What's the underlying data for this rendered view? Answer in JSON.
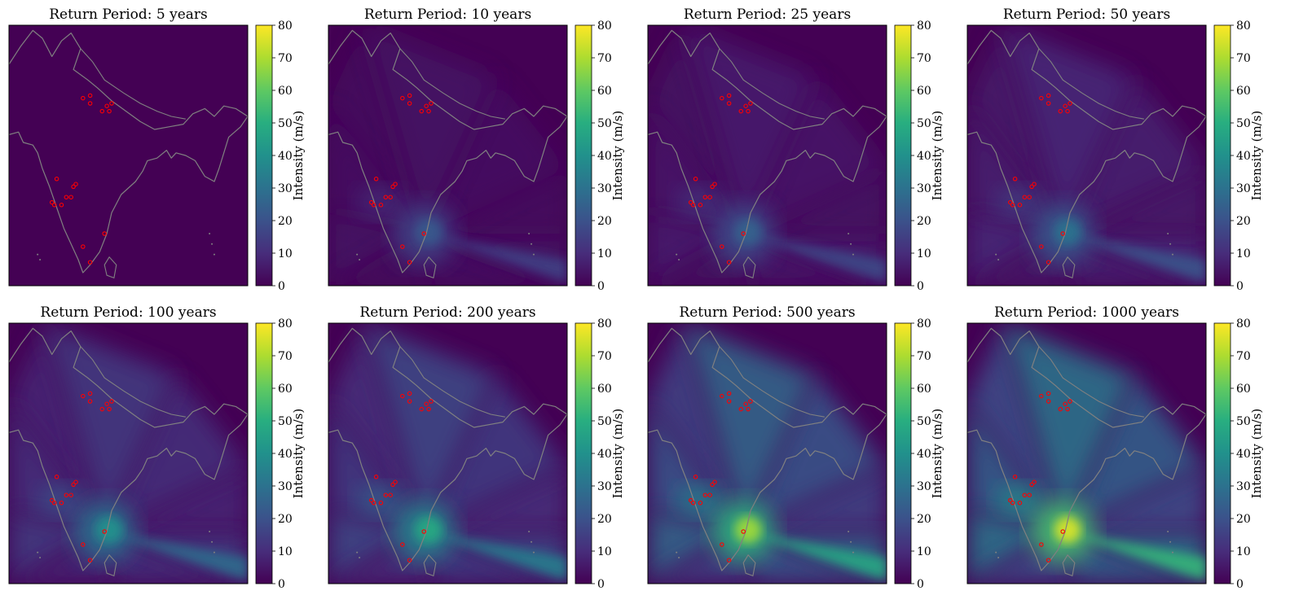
{
  "figure": {
    "colorbar_label": "Intensity (m/s)",
    "colormap": "viridis",
    "colorbar_range": [
      0,
      80
    ],
    "colorbar_ticks": [
      0,
      10,
      20,
      30,
      40,
      50,
      60,
      70,
      80
    ],
    "coastline_color": "#808080",
    "marker_color": "#ff0000"
  },
  "chart_data": [
    {
      "type": "heatmap",
      "title": "Return Period: 5 years",
      "return_period": 5,
      "peak_intensity": 2,
      "spread": 0.0
    },
    {
      "type": "heatmap",
      "title": "Return Period: 10 years",
      "return_period": 10,
      "peak_intensity": 22,
      "spread": 0.45
    },
    {
      "type": "heatmap",
      "title": "Return Period: 25 years",
      "return_period": 25,
      "peak_intensity": 25,
      "spread": 0.6
    },
    {
      "type": "heatmap",
      "title": "Return Period: 50 years",
      "return_period": 50,
      "peak_intensity": 30,
      "spread": 0.7
    },
    {
      "type": "heatmap",
      "title": "Return Period: 100 years",
      "return_period": 100,
      "peak_intensity": 40,
      "spread": 0.8
    },
    {
      "type": "heatmap",
      "title": "Return Period: 200 years",
      "return_period": 200,
      "peak_intensity": 48,
      "spread": 0.85
    },
    {
      "type": "heatmap",
      "title": "Return Period: 500 years",
      "return_period": 500,
      "peak_intensity": 68,
      "spread": 0.9
    },
    {
      "type": "heatmap",
      "title": "Return Period: 1000 years",
      "return_period": 1000,
      "peak_intensity": 75,
      "spread": 0.95
    }
  ]
}
